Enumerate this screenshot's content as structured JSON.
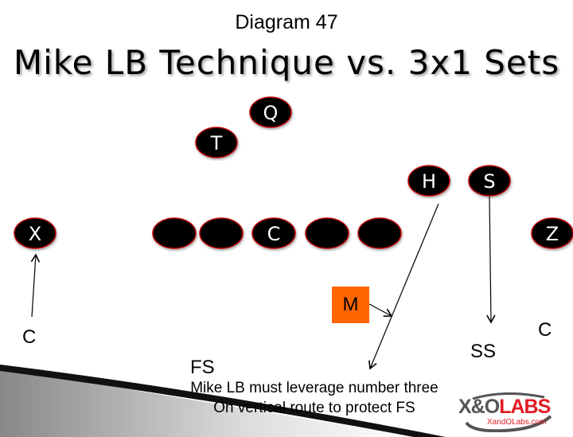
{
  "header": {
    "diagram_number": "Diagram 47",
    "title": "Mike LB Technique vs. 3x1 Sets"
  },
  "offense": [
    {
      "label": "Q"
    },
    {
      "label": "T"
    },
    {
      "label": "H"
    },
    {
      "label": "S"
    },
    {
      "label": "X"
    },
    {
      "label": ""
    },
    {
      "label": ""
    },
    {
      "label": "C"
    },
    {
      "label": ""
    },
    {
      "label": ""
    },
    {
      "label": "Z"
    }
  ],
  "defense": {
    "mike": "M",
    "left_corner": "C",
    "right_corner": "C",
    "strong_safety": "SS",
    "free_safety": "FS"
  },
  "caption": {
    "line1": "Mike LB must leverage number three",
    "line2": "On vertical route to protect FS"
  },
  "logo": {
    "brand": "X&OLABS",
    "url_text": "XandOLabs.com"
  },
  "colors": {
    "player_fill": "#000000",
    "player_outline": "#c00000",
    "mike_fill": "#ff6600",
    "logo_red": "#e31b23"
  }
}
